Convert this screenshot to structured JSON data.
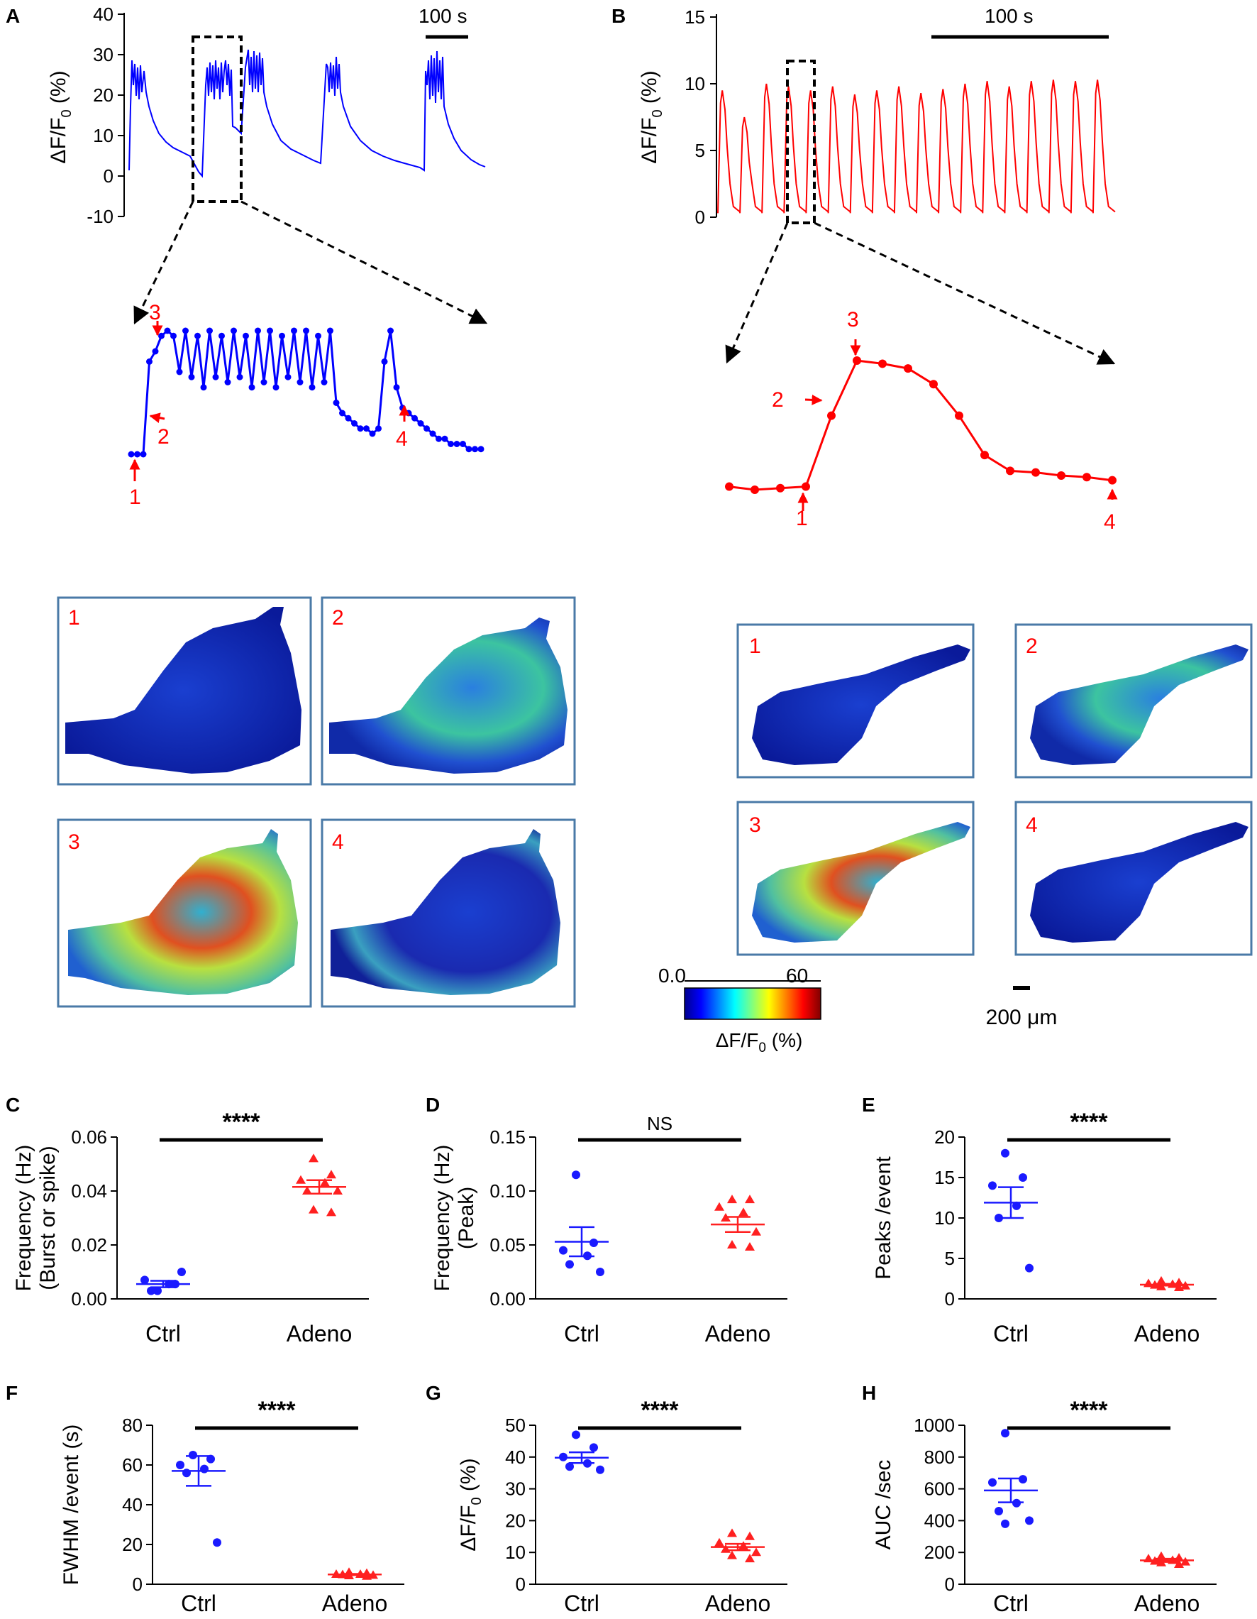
{
  "chart_data": [
    {
      "panel": "A",
      "type": "line",
      "color": "#0000FF",
      "ylabel": "ΔF/F",
      "ylabel_sub": "0",
      "ylabel_unit": "(%)",
      "yticks": [
        "40",
        "30",
        "20",
        "10",
        "0",
        "-10"
      ],
      "ylim": [
        -10,
        40
      ],
      "scalebar": "100 s",
      "zoom_markers": [
        "1",
        "2",
        "3",
        "4"
      ],
      "heatmap_labels": [
        "1",
        "2",
        "3",
        "4"
      ],
      "zoom_trace_y": [
        4,
        4,
        4,
        22,
        24,
        27,
        28,
        27,
        20,
        28,
        19,
        27,
        17,
        28,
        19,
        27,
        18,
        28,
        19,
        27,
        17,
        28,
        18,
        28,
        17,
        27,
        19,
        28,
        18,
        28,
        17,
        27,
        18,
        28,
        14,
        12,
        11,
        10,
        9,
        9,
        8,
        9,
        22,
        28,
        17,
        13,
        12,
        11,
        10,
        9,
        8,
        7,
        7,
        6,
        6,
        6,
        5,
        5,
        5
      ]
    },
    {
      "panel": "B",
      "type": "line",
      "color": "#FF0000",
      "ylabel": "ΔF/F",
      "ylabel_sub": "0",
      "ylabel_unit": "(%)",
      "yticks": [
        "15",
        "10",
        "5",
        "0"
      ],
      "ylim": [
        0,
        15
      ],
      "scalebar": "100 s",
      "zoom_markers": [
        "1",
        "2",
        "3",
        "4"
      ],
      "heatmap_labels": [
        "1",
        "2",
        "3",
        "4"
      ],
      "zoom_trace_y": [
        1.0,
        0.8,
        0.9,
        1.0,
        5.5,
        9.0,
        8.8,
        8.5,
        7.5,
        5.5,
        3.0,
        2.0,
        1.9,
        1.7,
        1.6,
        1.4
      ]
    },
    {
      "panel": "colorbar",
      "type": "heatmap",
      "min_label": "0.0",
      "max_label": "60",
      "label": "ΔF/F",
      "label_sub": "0",
      "label_unit": "(%)",
      "scale_label": "200 μm"
    },
    {
      "panel": "C",
      "type": "scatter",
      "ylabel_lines": [
        "Frequency (Hz)",
        "(Burst or spike)"
      ],
      "yticks": [
        "0.00",
        "0.02",
        "0.04",
        "0.06"
      ],
      "ylim": [
        0,
        0.06
      ],
      "categories": [
        "Ctrl",
        "Adeno"
      ],
      "significance": "****",
      "series": [
        {
          "name": "Ctrl",
          "color": "#1a1aff",
          "marker": "circle",
          "values": [
            0.003,
            0.0055,
            0.007,
            0.0055,
            0.003,
            0.01
          ],
          "mean": 0.0055,
          "sem": 0.0012
        },
        {
          "name": "Adeno",
          "color": "#ff2020",
          "marker": "triangle",
          "values": [
            0.052,
            0.046,
            0.044,
            0.043,
            0.04,
            0.04,
            0.033,
            0.032
          ],
          "mean": 0.0415,
          "sem": 0.0025
        }
      ]
    },
    {
      "panel": "D",
      "type": "scatter",
      "ylabel_lines": [
        "Frequency (Hz)",
        "(Peak)"
      ],
      "yticks": [
        "0.00",
        "0.05",
        "0.10",
        "0.15"
      ],
      "ylim": [
        0,
        0.15
      ],
      "categories": [
        "Ctrl",
        "Adeno"
      ],
      "significance": "NS",
      "series": [
        {
          "name": "Ctrl",
          "color": "#1a1aff",
          "marker": "circle",
          "values": [
            0.115,
            0.052,
            0.045,
            0.04,
            0.032,
            0.025
          ],
          "mean": 0.053,
          "sem": 0.0135
        },
        {
          "name": "Adeno",
          "color": "#ff2020",
          "marker": "triangle",
          "values": [
            0.092,
            0.092,
            0.085,
            0.08,
            0.075,
            0.062,
            0.05,
            0.048
          ],
          "mean": 0.069,
          "sem": 0.007
        }
      ]
    },
    {
      "panel": "E",
      "type": "scatter",
      "ylabel_lines": [
        "Peaks /event"
      ],
      "yticks": [
        "0",
        "5",
        "10",
        "15",
        "20"
      ],
      "ylim": [
        0,
        20
      ],
      "categories": [
        "Ctrl",
        "Adeno"
      ],
      "significance": "****",
      "series": [
        {
          "name": "Ctrl",
          "color": "#1a1aff",
          "marker": "circle",
          "values": [
            18,
            15,
            14,
            11.5,
            10,
            3.8
          ],
          "mean": 11.9,
          "sem": 1.9
        },
        {
          "name": "Adeno",
          "color": "#ff2020",
          "marker": "triangle",
          "values": [
            2.2,
            2.0,
            1.9,
            1.8,
            1.7,
            1.6,
            1.5,
            1.4
          ],
          "mean": 1.75,
          "sem": 0.1
        }
      ]
    },
    {
      "panel": "F",
      "type": "scatter",
      "ylabel_lines": [
        "FWHM /event (s)"
      ],
      "yticks": [
        "0",
        "20",
        "40",
        "60",
        "80"
      ],
      "ylim": [
        0,
        80
      ],
      "categories": [
        "Ctrl",
        "Adeno"
      ],
      "significance": "****",
      "series": [
        {
          "name": "Ctrl",
          "color": "#1a1aff",
          "marker": "circle",
          "values": [
            65,
            63,
            60,
            58,
            56,
            21
          ],
          "mean": 57,
          "sem": 7.5
        },
        {
          "name": "Adeno",
          "color": "#ff2020",
          "marker": "triangle",
          "values": [
            6,
            5.5,
            5,
            5,
            4.8,
            4.5,
            4.3,
            4
          ],
          "mean": 4.9,
          "sem": 0.3
        }
      ]
    },
    {
      "panel": "G",
      "type": "scatter",
      "ylabel": "ΔF/F",
      "ylabel_sub": "0",
      "ylabel_unit": "(%)",
      "yticks": [
        "0",
        "10",
        "20",
        "30",
        "40",
        "50"
      ],
      "ylim": [
        0,
        50
      ],
      "categories": [
        "Ctrl",
        "Adeno"
      ],
      "significance": "****",
      "series": [
        {
          "name": "Ctrl",
          "color": "#1a1aff",
          "marker": "circle",
          "values": [
            47,
            43,
            40,
            38,
            37,
            36
          ],
          "mean": 39.8,
          "sem": 1.7
        },
        {
          "name": "Adeno",
          "color": "#ff2020",
          "marker": "triangle",
          "values": [
            16,
            15,
            13,
            12,
            11,
            10,
            9,
            8
          ],
          "mean": 11.7,
          "sem": 1.0
        }
      ]
    },
    {
      "panel": "H",
      "type": "scatter",
      "ylabel_lines": [
        "AUC /sec"
      ],
      "yticks": [
        "0",
        "200",
        "400",
        "600",
        "800",
        "1000"
      ],
      "ylim": [
        0,
        1000
      ],
      "categories": [
        "Ctrl",
        "Adeno"
      ],
      "significance": "****",
      "series": [
        {
          "name": "Ctrl",
          "color": "#1a1aff",
          "marker": "circle",
          "values": [
            950,
            660,
            640,
            510,
            460,
            400,
            380
          ],
          "mean": 590,
          "sem": 75
        },
        {
          "name": "Adeno",
          "color": "#ff2020",
          "marker": "triangle",
          "values": [
            175,
            165,
            160,
            150,
            145,
            140,
            135,
            125
          ],
          "mean": 150,
          "sem": 10
        }
      ]
    }
  ]
}
